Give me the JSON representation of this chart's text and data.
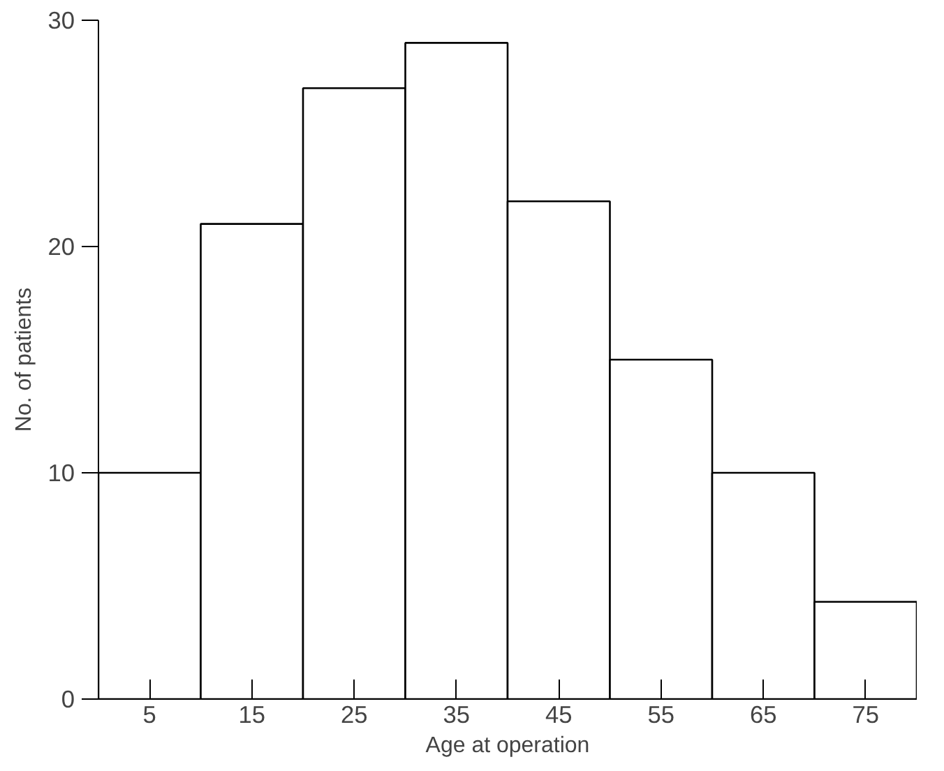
{
  "chart_data": {
    "type": "histogram",
    "xlabel": "Age at operation",
    "ylabel": "No. of patients",
    "bins": [
      0,
      10,
      20,
      30,
      40,
      50,
      60,
      70,
      80
    ],
    "values": [
      10,
      21,
      27,
      29,
      22,
      15,
      10,
      4.3
    ],
    "color": "#ffffff",
    "xlim": [
      0,
      80
    ],
    "ylim": [
      0,
      30
    ],
    "xticks": [
      5,
      15,
      25,
      35,
      45,
      55,
      65,
      75
    ],
    "yticks": [
      0,
      10,
      20,
      30
    ],
    "grid": false
  }
}
